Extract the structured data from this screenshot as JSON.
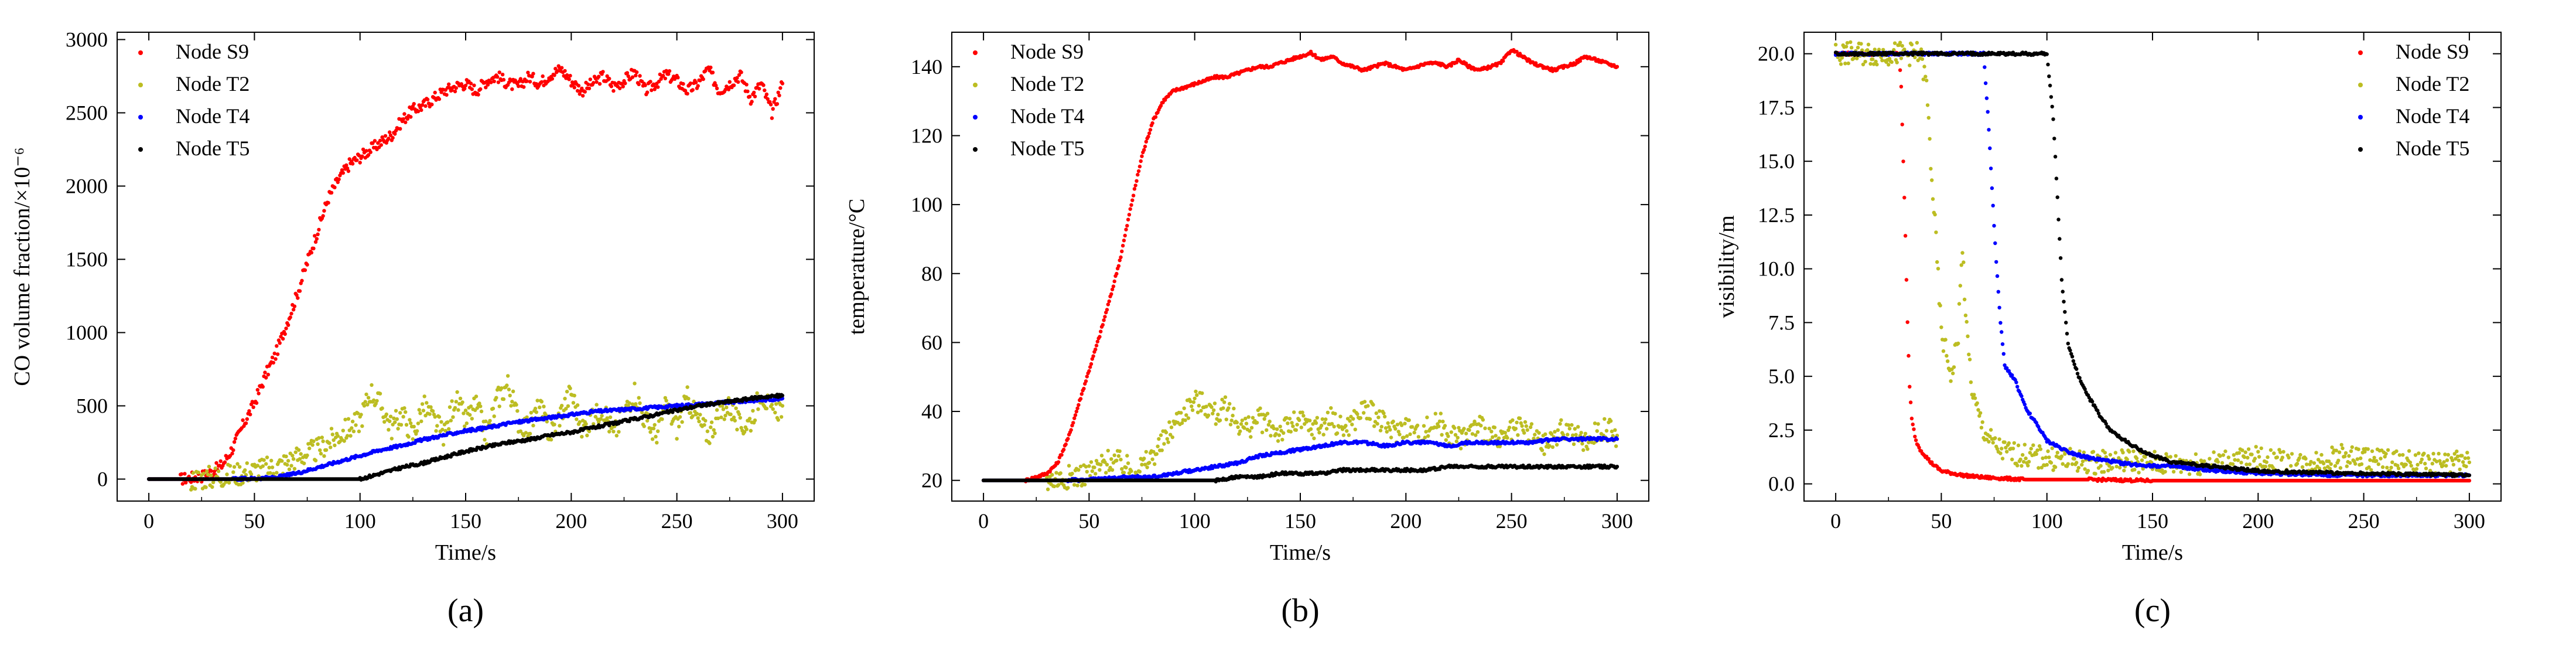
{
  "figure": {
    "panel_count": 3
  },
  "chart_data": [
    {
      "type": "scatter",
      "panel_label": "(a)",
      "panel_letter": "a",
      "xlabel": "Time/s",
      "ylabel": "CO volume fraction/×10⁻⁶",
      "xlim": [
        -15,
        315
      ],
      "ylim": [
        -150,
        3050
      ],
      "xticks": [
        0,
        50,
        100,
        150,
        200,
        250,
        300
      ],
      "yticks": [
        0,
        500,
        1000,
        1500,
        2000,
        2500,
        3000
      ],
      "legend_position": "top-left",
      "series": [
        {
          "name": "Node S9",
          "color": "#ff0000",
          "x": [
            0,
            15,
            20,
            25,
            30,
            35,
            40,
            45,
            50,
            55,
            60,
            65,
            70,
            75,
            80,
            85,
            90,
            95,
            100,
            105,
            110,
            115,
            120,
            125,
            130,
            135,
            140,
            145,
            150,
            155,
            160,
            165,
            170,
            175,
            180,
            185,
            190,
            195,
            200,
            205,
            210,
            215,
            220,
            225,
            230,
            235,
            240,
            245,
            250,
            255,
            260,
            265,
            270,
            275,
            280,
            285,
            290,
            295,
            300
          ],
          "y": [
            0,
            0,
            10,
            20,
            50,
            100,
            220,
            380,
            520,
            700,
            850,
            1050,
            1250,
            1480,
            1700,
            1920,
            2050,
            2150,
            2200,
            2250,
            2300,
            2350,
            2450,
            2520,
            2550,
            2600,
            2650,
            2680,
            2700,
            2650,
            2720,
            2750,
            2700,
            2680,
            2750,
            2700,
            2760,
            2800,
            2720,
            2650,
            2700,
            2750,
            2680,
            2720,
            2780,
            2650,
            2700,
            2760,
            2720,
            2650,
            2700,
            2800,
            2650,
            2700,
            2760,
            2600,
            2700,
            2500,
            2700
          ]
        },
        {
          "name": "Node T2",
          "color": "#bcbd22",
          "x": [
            0,
            20,
            40,
            50,
            60,
            70,
            80,
            90,
            100,
            105,
            110,
            115,
            120,
            125,
            130,
            135,
            140,
            145,
            150,
            155,
            160,
            165,
            170,
            175,
            180,
            185,
            190,
            195,
            200,
            205,
            210,
            215,
            220,
            225,
            230,
            235,
            240,
            245,
            250,
            255,
            260,
            265,
            270,
            275,
            280,
            285,
            290,
            295,
            300
          ],
          "y": [
            0,
            0,
            30,
            60,
            80,
            150,
            200,
            300,
            400,
            600,
            500,
            350,
            450,
            300,
            500,
            400,
            300,
            550,
            400,
            500,
            300,
            550,
            650,
            400,
            350,
            500,
            300,
            450,
            600,
            350,
            400,
            500,
            300,
            450,
            600,
            400,
            300,
            500,
            350,
            550,
            400,
            300,
            450,
            500,
            350,
            400,
            600,
            450,
            500
          ]
        },
        {
          "name": "Node T4",
          "color": "#0000ff",
          "x": [
            0,
            40,
            60,
            70,
            80,
            90,
            100,
            110,
            120,
            130,
            140,
            150,
            160,
            170,
            180,
            190,
            200,
            210,
            220,
            230,
            240,
            250,
            260,
            270,
            280,
            290,
            300
          ],
          "y": [
            0,
            0,
            10,
            40,
            80,
            120,
            160,
            200,
            230,
            270,
            300,
            330,
            350,
            380,
            400,
            420,
            440,
            460,
            470,
            480,
            490,
            500,
            510,
            520,
            530,
            540,
            550
          ]
        },
        {
          "name": "Node T5",
          "color": "#000000",
          "x": [
            0,
            40,
            60,
            80,
            100,
            110,
            120,
            130,
            140,
            150,
            160,
            170,
            180,
            190,
            200,
            210,
            220,
            230,
            240,
            250,
            260,
            270,
            280,
            290,
            300
          ],
          "y": [
            0,
            0,
            0,
            0,
            0,
            40,
            80,
            110,
            150,
            190,
            220,
            250,
            270,
            300,
            320,
            350,
            380,
            410,
            440,
            470,
            500,
            520,
            540,
            560,
            570
          ]
        }
      ]
    },
    {
      "type": "scatter",
      "panel_label": "(b)",
      "panel_letter": "b",
      "xlabel": "Time/s",
      "ylabel": "temperature/°C",
      "xlim": [
        -15,
        315
      ],
      "ylim": [
        14,
        150
      ],
      "xticks": [
        0,
        50,
        100,
        150,
        200,
        250,
        300
      ],
      "yticks": [
        20,
        40,
        60,
        80,
        100,
        120,
        140
      ],
      "legend_position": "top-left",
      "series": [
        {
          "name": "Node S9",
          "color": "#ff0000",
          "x": [
            0,
            20,
            25,
            30,
            35,
            40,
            45,
            50,
            55,
            60,
            65,
            70,
            75,
            80,
            85,
            90,
            95,
            100,
            105,
            110,
            115,
            120,
            125,
            130,
            135,
            140,
            145,
            150,
            155,
            160,
            165,
            170,
            175,
            180,
            185,
            190,
            195,
            200,
            205,
            210,
            215,
            220,
            225,
            230,
            235,
            240,
            245,
            250,
            255,
            260,
            265,
            270,
            275,
            280,
            285,
            290,
            295,
            300
          ],
          "y": [
            20,
            20,
            21,
            22,
            25,
            32,
            42,
            52,
            62,
            73,
            85,
            100,
            114,
            124,
            130,
            133,
            134,
            135,
            136,
            137,
            137,
            138,
            139,
            140,
            140,
            141,
            142,
            143,
            144,
            142,
            143,
            141,
            140,
            139,
            140,
            141,
            140,
            139,
            140,
            141,
            141,
            140,
            142,
            140,
            139,
            140,
            141,
            145,
            143,
            141,
            140,
            139,
            140,
            141,
            143,
            142,
            141,
            140
          ]
        },
        {
          "name": "Node T2",
          "color": "#bcbd22",
          "x": [
            0,
            20,
            30,
            40,
            50,
            55,
            60,
            65,
            70,
            75,
            80,
            85,
            90,
            95,
            100,
            105,
            110,
            115,
            120,
            125,
            130,
            135,
            140,
            145,
            150,
            155,
            160,
            165,
            170,
            175,
            180,
            185,
            190,
            195,
            200,
            205,
            210,
            215,
            220,
            225,
            230,
            235,
            240,
            245,
            250,
            255,
            260,
            265,
            270,
            275,
            280,
            285,
            290,
            295,
            300
          ],
          "y": [
            20,
            20,
            20,
            21,
            22,
            24,
            26,
            25,
            23,
            24,
            27,
            31,
            36,
            40,
            43,
            42,
            39,
            41,
            37,
            35,
            38,
            36,
            34,
            36,
            37,
            35,
            36,
            38,
            35,
            37,
            41,
            39,
            36,
            34,
            36,
            33,
            35,
            37,
            34,
            32,
            34,
            36,
            33,
            31,
            34,
            35,
            33,
            30,
            32,
            35,
            33,
            31,
            34,
            35,
            33
          ]
        },
        {
          "name": "Node T4",
          "color": "#0000ff",
          "x": [
            0,
            40,
            70,
            80,
            90,
            100,
            110,
            120,
            130,
            140,
            150,
            160,
            170,
            180,
            190,
            200,
            210,
            220,
            230,
            240,
            250,
            260,
            270,
            280,
            290,
            300
          ],
          "y": [
            20,
            20,
            21,
            21,
            22,
            23,
            24,
            25,
            27,
            28,
            29,
            30,
            31,
            31,
            30,
            31,
            31,
            30,
            31,
            31,
            31,
            31,
            32,
            32,
            32,
            32
          ]
        },
        {
          "name": "Node T5",
          "color": "#000000",
          "x": [
            0,
            80,
            100,
            110,
            120,
            130,
            140,
            150,
            160,
            170,
            180,
            190,
            200,
            210,
            220,
            230,
            240,
            250,
            260,
            270,
            280,
            290,
            300
          ],
          "y": [
            20,
            20,
            20,
            20,
            21,
            21,
            22,
            22,
            22,
            23,
            23,
            23,
            23,
            23,
            24,
            24,
            24,
            24,
            24,
            24,
            24,
            24,
            24
          ]
        }
      ]
    },
    {
      "type": "scatter",
      "panel_label": "(c)",
      "panel_letter": "c",
      "xlabel": "Time/s",
      "ylabel": "visibility/m",
      "xlim": [
        -15,
        315
      ],
      "ylim": [
        -0.8,
        21
      ],
      "xticks": [
        0,
        50,
        100,
        150,
        200,
        250,
        300
      ],
      "yticks": [
        0.0,
        2.5,
        5.0,
        7.5,
        10.0,
        12.5,
        15.0,
        17.5,
        20.0
      ],
      "ytick_labels": [
        "0.0",
        "2.5",
        "5.0",
        "7.5",
        "10.0",
        "12.5",
        "15.0",
        "17.5",
        "20.0"
      ],
      "legend_position": "top-right",
      "series": [
        {
          "name": "Node S9",
          "color": "#ff0000",
          "x": [
            0,
            10,
            20,
            30,
            31,
            32,
            33,
            34,
            35,
            36,
            38,
            40,
            45,
            50,
            60,
            70,
            80,
            90,
            100,
            120,
            150,
            200,
            250,
            300
          ],
          "y": [
            20,
            20,
            20,
            20,
            18.5,
            15,
            11.5,
            7.5,
            4.5,
            3.0,
            2.0,
            1.6,
            1.0,
            0.6,
            0.4,
            0.3,
            0.25,
            0.2,
            0.2,
            0.2,
            0.15,
            0.15,
            0.15,
            0.15
          ]
        },
        {
          "name": "Node T2",
          "color": "#bcbd22",
          "x": [
            0,
            20,
            40,
            43,
            45,
            47,
            50,
            55,
            58,
            60,
            62,
            65,
            70,
            75,
            80,
            90,
            100,
            120,
            140,
            160,
            180,
            200,
            220,
            240,
            260,
            280,
            300
          ],
          "y": [
            20,
            20,
            20,
            18.5,
            15,
            12,
            7,
            5,
            7,
            11,
            7,
            4,
            2.5,
            1.8,
            1.5,
            1.3,
            1.2,
            1.0,
            1.1,
            0.9,
            1.0,
            1.2,
            0.9,
            1.3,
            1.1,
            0.9,
            1.0
          ]
        },
        {
          "name": "Node T4",
          "color": "#0000ff",
          "x": [
            0,
            40,
            60,
            70,
            72,
            74,
            76,
            78,
            80,
            85,
            90,
            95,
            100,
            110,
            120,
            140,
            160,
            180,
            200,
            240,
            300
          ],
          "y": [
            20,
            20,
            20,
            20,
            17.3,
            13.8,
            10.3,
            7.5,
            5.5,
            4.8,
            3.5,
            2.8,
            2.0,
            1.5,
            1.2,
            0.9,
            0.8,
            0.6,
            0.5,
            0.4,
            0.4
          ]
        },
        {
          "name": "Node T5",
          "color": "#000000",
          "x": [
            0,
            20,
            40,
            60,
            80,
            100,
            103,
            105,
            107,
            110,
            115,
            120,
            125,
            130,
            140,
            150,
            160,
            180,
            200,
            240,
            300
          ],
          "y": [
            20,
            20,
            20,
            20,
            20,
            20,
            17,
            13.3,
            9.5,
            6.5,
            5,
            4,
            3.2,
            2.5,
            1.8,
            1.3,
            1.0,
            0.8,
            0.6,
            0.5,
            0.4
          ]
        }
      ]
    }
  ]
}
